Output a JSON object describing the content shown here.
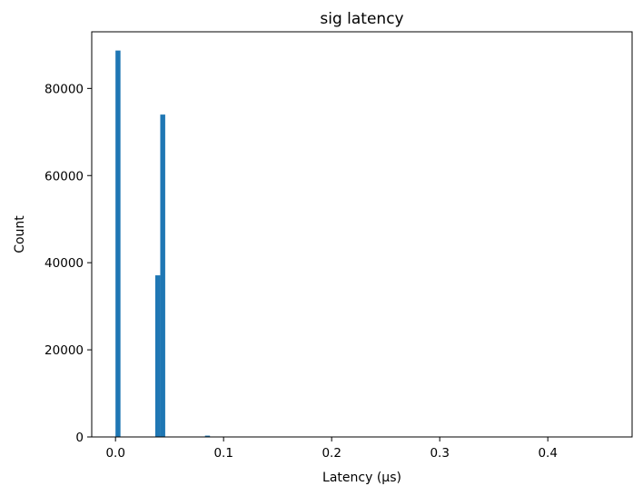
{
  "chart_data": {
    "type": "bar",
    "title": "sig latency",
    "xlabel": "Latency (µs)",
    "ylabel": "Count",
    "xlim": [
      -0.022,
      0.478
    ],
    "ylim": [
      0,
      93000
    ],
    "grid": false,
    "legend": "none",
    "color": "#1f77b4",
    "bin_width": 0.0046,
    "x_ticks": [
      {
        "value": 0.0,
        "label": "0.0"
      },
      {
        "value": 0.1,
        "label": "0.1"
      },
      {
        "value": 0.2,
        "label": "0.2"
      },
      {
        "value": 0.3,
        "label": "0.3"
      },
      {
        "value": 0.4,
        "label": "0.4"
      }
    ],
    "y_ticks": [
      {
        "value": 0,
        "label": "0"
      },
      {
        "value": 20000,
        "label": "20000"
      },
      {
        "value": 40000,
        "label": "40000"
      },
      {
        "value": 60000,
        "label": "60000"
      },
      {
        "value": 80000,
        "label": "80000"
      }
    ],
    "bins": [
      {
        "x": 0.0023,
        "value": 88700
      },
      {
        "x": 0.0391,
        "value": 37100
      },
      {
        "x": 0.0437,
        "value": 74000
      },
      {
        "x": 0.0851,
        "value": 300
      }
    ]
  }
}
